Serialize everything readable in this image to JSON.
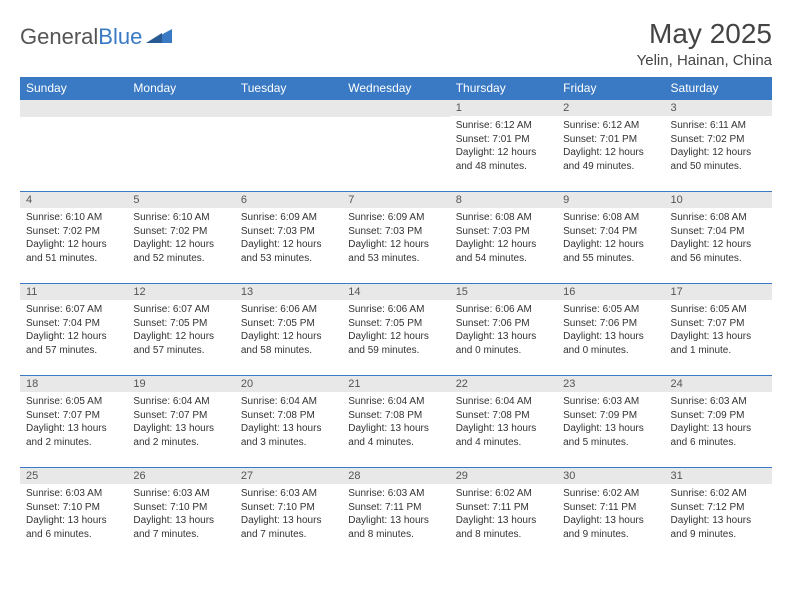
{
  "logo": {
    "general": "General",
    "blue": "Blue"
  },
  "title": "May 2025",
  "location": "Yelin, Hainan, China",
  "colors": {
    "header_bg": "#3a7ac4",
    "day_num_bg": "#e8e8e8",
    "border": "#3a7ac4"
  },
  "weekdays": [
    "Sunday",
    "Monday",
    "Tuesday",
    "Wednesday",
    "Thursday",
    "Friday",
    "Saturday"
  ],
  "weeks": [
    [
      null,
      null,
      null,
      null,
      {
        "n": "1",
        "sr": "Sunrise: 6:12 AM",
        "ss": "Sunset: 7:01 PM",
        "d1": "Daylight: 12 hours",
        "d2": "and 48 minutes."
      },
      {
        "n": "2",
        "sr": "Sunrise: 6:12 AM",
        "ss": "Sunset: 7:01 PM",
        "d1": "Daylight: 12 hours",
        "d2": "and 49 minutes."
      },
      {
        "n": "3",
        "sr": "Sunrise: 6:11 AM",
        "ss": "Sunset: 7:02 PM",
        "d1": "Daylight: 12 hours",
        "d2": "and 50 minutes."
      }
    ],
    [
      {
        "n": "4",
        "sr": "Sunrise: 6:10 AM",
        "ss": "Sunset: 7:02 PM",
        "d1": "Daylight: 12 hours",
        "d2": "and 51 minutes."
      },
      {
        "n": "5",
        "sr": "Sunrise: 6:10 AM",
        "ss": "Sunset: 7:02 PM",
        "d1": "Daylight: 12 hours",
        "d2": "and 52 minutes."
      },
      {
        "n": "6",
        "sr": "Sunrise: 6:09 AM",
        "ss": "Sunset: 7:03 PM",
        "d1": "Daylight: 12 hours",
        "d2": "and 53 minutes."
      },
      {
        "n": "7",
        "sr": "Sunrise: 6:09 AM",
        "ss": "Sunset: 7:03 PM",
        "d1": "Daylight: 12 hours",
        "d2": "and 53 minutes."
      },
      {
        "n": "8",
        "sr": "Sunrise: 6:08 AM",
        "ss": "Sunset: 7:03 PM",
        "d1": "Daylight: 12 hours",
        "d2": "and 54 minutes."
      },
      {
        "n": "9",
        "sr": "Sunrise: 6:08 AM",
        "ss": "Sunset: 7:04 PM",
        "d1": "Daylight: 12 hours",
        "d2": "and 55 minutes."
      },
      {
        "n": "10",
        "sr": "Sunrise: 6:08 AM",
        "ss": "Sunset: 7:04 PM",
        "d1": "Daylight: 12 hours",
        "d2": "and 56 minutes."
      }
    ],
    [
      {
        "n": "11",
        "sr": "Sunrise: 6:07 AM",
        "ss": "Sunset: 7:04 PM",
        "d1": "Daylight: 12 hours",
        "d2": "and 57 minutes."
      },
      {
        "n": "12",
        "sr": "Sunrise: 6:07 AM",
        "ss": "Sunset: 7:05 PM",
        "d1": "Daylight: 12 hours",
        "d2": "and 57 minutes."
      },
      {
        "n": "13",
        "sr": "Sunrise: 6:06 AM",
        "ss": "Sunset: 7:05 PM",
        "d1": "Daylight: 12 hours",
        "d2": "and 58 minutes."
      },
      {
        "n": "14",
        "sr": "Sunrise: 6:06 AM",
        "ss": "Sunset: 7:05 PM",
        "d1": "Daylight: 12 hours",
        "d2": "and 59 minutes."
      },
      {
        "n": "15",
        "sr": "Sunrise: 6:06 AM",
        "ss": "Sunset: 7:06 PM",
        "d1": "Daylight: 13 hours",
        "d2": "and 0 minutes."
      },
      {
        "n": "16",
        "sr": "Sunrise: 6:05 AM",
        "ss": "Sunset: 7:06 PM",
        "d1": "Daylight: 13 hours",
        "d2": "and 0 minutes."
      },
      {
        "n": "17",
        "sr": "Sunrise: 6:05 AM",
        "ss": "Sunset: 7:07 PM",
        "d1": "Daylight: 13 hours",
        "d2": "and 1 minute."
      }
    ],
    [
      {
        "n": "18",
        "sr": "Sunrise: 6:05 AM",
        "ss": "Sunset: 7:07 PM",
        "d1": "Daylight: 13 hours",
        "d2": "and 2 minutes."
      },
      {
        "n": "19",
        "sr": "Sunrise: 6:04 AM",
        "ss": "Sunset: 7:07 PM",
        "d1": "Daylight: 13 hours",
        "d2": "and 2 minutes."
      },
      {
        "n": "20",
        "sr": "Sunrise: 6:04 AM",
        "ss": "Sunset: 7:08 PM",
        "d1": "Daylight: 13 hours",
        "d2": "and 3 minutes."
      },
      {
        "n": "21",
        "sr": "Sunrise: 6:04 AM",
        "ss": "Sunset: 7:08 PM",
        "d1": "Daylight: 13 hours",
        "d2": "and 4 minutes."
      },
      {
        "n": "22",
        "sr": "Sunrise: 6:04 AM",
        "ss": "Sunset: 7:08 PM",
        "d1": "Daylight: 13 hours",
        "d2": "and 4 minutes."
      },
      {
        "n": "23",
        "sr": "Sunrise: 6:03 AM",
        "ss": "Sunset: 7:09 PM",
        "d1": "Daylight: 13 hours",
        "d2": "and 5 minutes."
      },
      {
        "n": "24",
        "sr": "Sunrise: 6:03 AM",
        "ss": "Sunset: 7:09 PM",
        "d1": "Daylight: 13 hours",
        "d2": "and 6 minutes."
      }
    ],
    [
      {
        "n": "25",
        "sr": "Sunrise: 6:03 AM",
        "ss": "Sunset: 7:10 PM",
        "d1": "Daylight: 13 hours",
        "d2": "and 6 minutes."
      },
      {
        "n": "26",
        "sr": "Sunrise: 6:03 AM",
        "ss": "Sunset: 7:10 PM",
        "d1": "Daylight: 13 hours",
        "d2": "and 7 minutes."
      },
      {
        "n": "27",
        "sr": "Sunrise: 6:03 AM",
        "ss": "Sunset: 7:10 PM",
        "d1": "Daylight: 13 hours",
        "d2": "and 7 minutes."
      },
      {
        "n": "28",
        "sr": "Sunrise: 6:03 AM",
        "ss": "Sunset: 7:11 PM",
        "d1": "Daylight: 13 hours",
        "d2": "and 8 minutes."
      },
      {
        "n": "29",
        "sr": "Sunrise: 6:02 AM",
        "ss": "Sunset: 7:11 PM",
        "d1": "Daylight: 13 hours",
        "d2": "and 8 minutes."
      },
      {
        "n": "30",
        "sr": "Sunrise: 6:02 AM",
        "ss": "Sunset: 7:11 PM",
        "d1": "Daylight: 13 hours",
        "d2": "and 9 minutes."
      },
      {
        "n": "31",
        "sr": "Sunrise: 6:02 AM",
        "ss": "Sunset: 7:12 PM",
        "d1": "Daylight: 13 hours",
        "d2": "and 9 minutes."
      }
    ]
  ]
}
